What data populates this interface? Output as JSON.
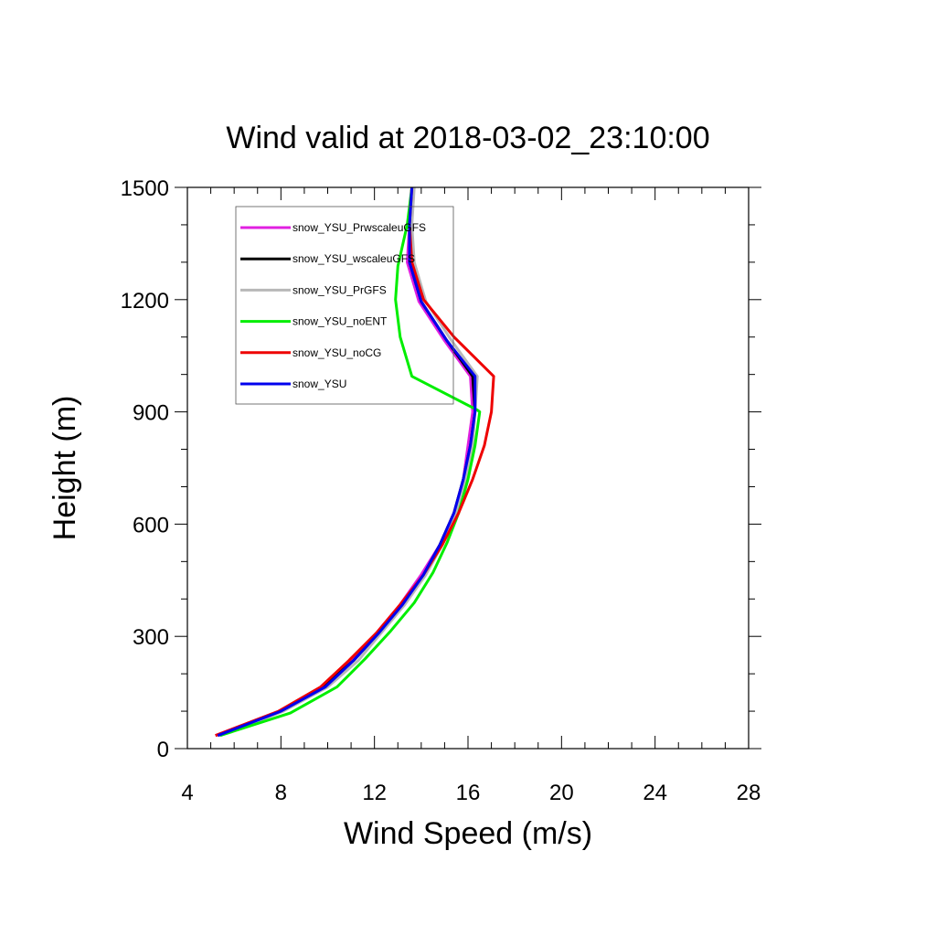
{
  "chart_data": {
    "type": "line",
    "title": "Wind valid at 2018-03-02_23:10:00",
    "xlabel": "Wind Speed (m/s)",
    "ylabel": "Height (m)",
    "xlim": [
      4,
      28
    ],
    "ylim": [
      0,
      1500
    ],
    "x_ticks": [
      4,
      8,
      12,
      16,
      20,
      24,
      28
    ],
    "y_ticks": [
      0,
      300,
      600,
      900,
      1200,
      1500
    ],
    "legend_placement": "top-left",
    "grid": false,
    "series": [
      {
        "name": "snow_YSU_PrwscaleuGFS",
        "color": "#e020e0",
        "points": [
          [
            5.2,
            35
          ],
          [
            7.9,
            100
          ],
          [
            9.8,
            165
          ],
          [
            11.0,
            235
          ],
          [
            12.1,
            310
          ],
          [
            13.1,
            385
          ],
          [
            14.0,
            465
          ],
          [
            14.8,
            545
          ],
          [
            15.4,
            630
          ],
          [
            15.8,
            720
          ],
          [
            16.0,
            810
          ],
          [
            16.2,
            900
          ],
          [
            16.1,
            995
          ],
          [
            15.0,
            1090
          ],
          [
            13.9,
            1195
          ],
          [
            13.4,
            1300
          ],
          [
            13.5,
            1400
          ],
          [
            13.6,
            1500
          ]
        ]
      },
      {
        "name": "snow_YSU_wscaleuGFS",
        "color": "#000000",
        "points": [
          [
            5.3,
            35
          ],
          [
            8.0,
            100
          ],
          [
            9.8,
            165
          ],
          [
            11.1,
            235
          ],
          [
            12.2,
            310
          ],
          [
            13.2,
            385
          ],
          [
            14.1,
            465
          ],
          [
            14.8,
            545
          ],
          [
            15.4,
            630
          ],
          [
            15.8,
            720
          ],
          [
            16.1,
            810
          ],
          [
            16.3,
            900
          ],
          [
            16.2,
            995
          ],
          [
            15.1,
            1090
          ],
          [
            14.0,
            1195
          ],
          [
            13.5,
            1300
          ],
          [
            13.5,
            1400
          ],
          [
            13.6,
            1500
          ]
        ]
      },
      {
        "name": "snow_YSU_PrGFS",
        "color": "#b8b8b8",
        "points": [
          [
            5.4,
            35
          ],
          [
            8.1,
            100
          ],
          [
            10.0,
            165
          ],
          [
            11.3,
            235
          ],
          [
            12.3,
            310
          ],
          [
            13.3,
            385
          ],
          [
            14.2,
            465
          ],
          [
            14.9,
            545
          ],
          [
            15.5,
            630
          ],
          [
            15.9,
            720
          ],
          [
            16.2,
            810
          ],
          [
            16.3,
            900
          ],
          [
            16.4,
            995
          ],
          [
            15.3,
            1090
          ],
          [
            14.2,
            1195
          ],
          [
            13.7,
            1300
          ],
          [
            13.6,
            1400
          ],
          [
            13.7,
            1500
          ]
        ]
      },
      {
        "name": "snow_YSU_noENT",
        "color": "#00ee00",
        "points": [
          [
            5.4,
            35
          ],
          [
            8.4,
            95
          ],
          [
            10.4,
            165
          ],
          [
            11.6,
            240
          ],
          [
            12.7,
            315
          ],
          [
            13.7,
            390
          ],
          [
            14.5,
            470
          ],
          [
            15.1,
            550
          ],
          [
            15.6,
            630
          ],
          [
            16.0,
            720
          ],
          [
            16.3,
            810
          ],
          [
            16.5,
            900
          ],
          [
            16.4,
            905
          ],
          [
            13.6,
            995
          ],
          [
            13.1,
            1100
          ],
          [
            12.9,
            1200
          ],
          [
            13.0,
            1290
          ],
          [
            13.4,
            1400
          ],
          [
            13.6,
            1500
          ]
        ]
      },
      {
        "name": "snow_YSU_noCG",
        "color": "#ee0000",
        "points": [
          [
            5.2,
            35
          ],
          [
            7.9,
            100
          ],
          [
            9.7,
            165
          ],
          [
            10.9,
            235
          ],
          [
            12.1,
            310
          ],
          [
            13.1,
            385
          ],
          [
            14.1,
            465
          ],
          [
            14.9,
            545
          ],
          [
            15.6,
            630
          ],
          [
            16.2,
            720
          ],
          [
            16.7,
            810
          ],
          [
            17.0,
            900
          ],
          [
            17.1,
            995
          ],
          [
            15.4,
            1100
          ],
          [
            14.1,
            1200
          ],
          [
            13.6,
            1300
          ],
          [
            13.5,
            1400
          ],
          [
            13.6,
            1500
          ]
        ]
      },
      {
        "name": "snow_YSU",
        "color": "#0000ee",
        "points": [
          [
            5.3,
            35
          ],
          [
            8.0,
            100
          ],
          [
            9.9,
            165
          ],
          [
            11.1,
            235
          ],
          [
            12.2,
            310
          ],
          [
            13.2,
            385
          ],
          [
            14.1,
            465
          ],
          [
            14.8,
            545
          ],
          [
            15.4,
            630
          ],
          [
            15.8,
            720
          ],
          [
            16.1,
            810
          ],
          [
            16.3,
            900
          ],
          [
            16.3,
            995
          ],
          [
            15.1,
            1090
          ],
          [
            14.0,
            1195
          ],
          [
            13.5,
            1300
          ],
          [
            13.5,
            1400
          ],
          [
            13.6,
            1500
          ]
        ]
      }
    ]
  }
}
